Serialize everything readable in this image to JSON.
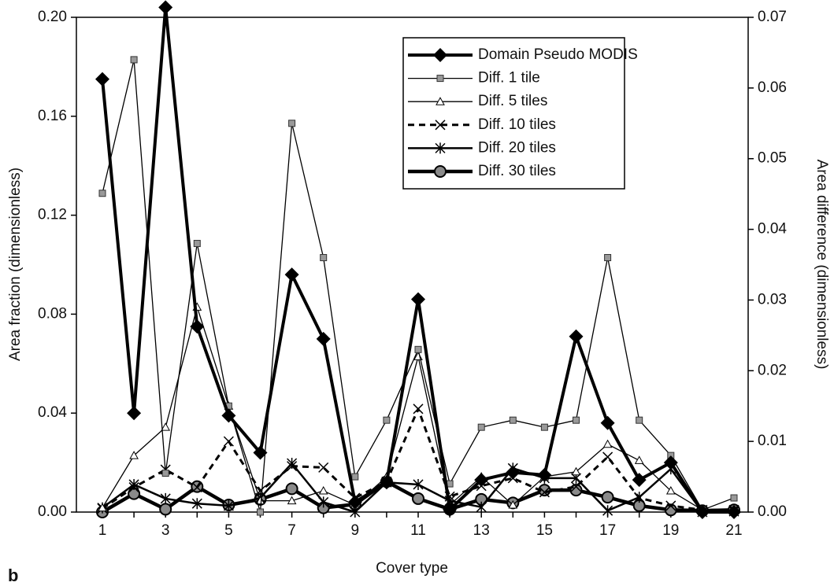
{
  "chart_data": {
    "type": "line",
    "panel_label": "b",
    "x_label": "Cover type",
    "y_label": "Area fraction (dimensionless)",
    "y2_label": "Area difference (dimensionless)",
    "categories": [
      1,
      null,
      3,
      null,
      5,
      null,
      7,
      null,
      9,
      null,
      11,
      null,
      13,
      null,
      15,
      null,
      17,
      null,
      19,
      null,
      21
    ],
    "ylim": [
      0,
      0.2
    ],
    "yticks": [
      {
        "value": 0,
        "label": "0.00"
      },
      {
        "value": 0.04,
        "label": "0.04"
      },
      {
        "value": 0.08,
        "label": "0.08"
      },
      {
        "value": 0.12,
        "label": "0.12"
      },
      {
        "value": 0.16,
        "label": "0.16"
      },
      {
        "value": 0.2,
        "label": "0.20"
      }
    ],
    "y2lim": [
      0,
      0.07
    ],
    "y2ticks": [
      {
        "value": 0,
        "label": "0.00"
      },
      {
        "value": 0.01,
        "label": "0.01"
      },
      {
        "value": 0.02,
        "label": "0.02"
      },
      {
        "value": 0.03,
        "label": "0.03"
      },
      {
        "value": 0.04,
        "label": "0.04"
      },
      {
        "value": 0.05,
        "label": "0.05"
      },
      {
        "value": 0.06,
        "label": "0.06"
      },
      {
        "value": 0.07,
        "label": "0.07"
      }
    ],
    "grid": false,
    "legend": "top-right",
    "series": [
      {
        "name": "Domain Pseudo MODIS",
        "color": "#000000",
        "marker": "diamond",
        "width": 4,
        "dashed": false,
        "axis": "y",
        "values": [
          0.175,
          0.04,
          0.204,
          0.075,
          0.039,
          0.024,
          0.096,
          0.07,
          0.004,
          0.012,
          0.086,
          0.001,
          0.013,
          0.016,
          0.015,
          0.071,
          0.036,
          0.013,
          0.02,
          0,
          0
        ]
      },
      {
        "name": "Diff. 1 tile",
        "color": "#000000",
        "marker": "square",
        "width": 1.3,
        "dashed": false,
        "axis": "y2",
        "values": [
          0.0451,
          0.064,
          0.0055,
          0.038,
          0.015,
          0,
          0.055,
          0.036,
          0.005,
          0.013,
          0.023,
          0.004,
          0.012,
          0.013,
          0.012,
          0.013,
          0.036,
          0.013,
          0.008,
          0.0003,
          0.002
        ]
      },
      {
        "name": "Diff. 5 tiles",
        "color": "#000000",
        "marker": "triangle",
        "width": 1.3,
        "dashed": false,
        "axis": "y2",
        "values": [
          0.0006,
          0.008,
          0.012,
          0.029,
          0.015,
          0.0016,
          0.0016,
          0.003,
          0.001,
          0.005,
          0.022,
          0.001,
          0.005,
          0.001,
          0.005,
          0.0057,
          0.0096,
          0.0073,
          0.003,
          0.0003,
          0
        ]
      },
      {
        "name": "Diff. 10 tiles",
        "color": "#000000",
        "marker": "x",
        "width": 3,
        "dashed": true,
        "axis": "y2",
        "values": [
          0.0005,
          0.0035,
          0.006,
          0.0035,
          0.01,
          0.003,
          0.0065,
          0.0063,
          0.002,
          0.0043,
          0.0146,
          0.0022,
          0.0037,
          0.0048,
          0.0028,
          0.0036,
          0.0078,
          0.002,
          0.0009,
          0.0003,
          0.0003
        ]
      },
      {
        "name": "Diff. 20 tiles",
        "color": "#000000",
        "marker": "star",
        "width": 2.5,
        "dashed": false,
        "axis": "y2",
        "values": [
          0.0006,
          0.0039,
          0.0019,
          0.0012,
          0.0009,
          0.002,
          0.0069,
          0.0014,
          0,
          0.0042,
          0.0039,
          0.0016,
          0.0007,
          0.0062,
          0.0048,
          0.0048,
          0.0002,
          0.0021,
          0.0061,
          0,
          0.0001
        ]
      },
      {
        "name": "Diff. 30 tiles",
        "color": "#000000",
        "marker": "circle",
        "width": 4.5,
        "dashed": false,
        "axis": "y2",
        "values": [
          0,
          0.0026,
          0.0004,
          0.0036,
          0.001,
          0.0018,
          0.0033,
          0.0006,
          0.0011,
          0.0043,
          0.0019,
          0.0004,
          0.0018,
          0.0013,
          0.0031,
          0.0031,
          0.0021,
          0.0009,
          0.0003,
          0.0002,
          0.0003
        ]
      }
    ]
  }
}
